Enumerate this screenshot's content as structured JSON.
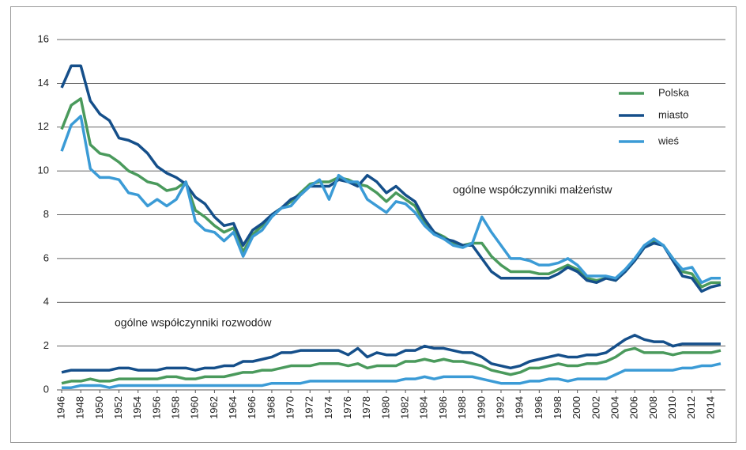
{
  "chart_data": {
    "type": "line",
    "x": [
      1946,
      1947,
      1948,
      1949,
      1950,
      1951,
      1952,
      1953,
      1954,
      1955,
      1956,
      1957,
      1958,
      1959,
      1960,
      1961,
      1962,
      1963,
      1964,
      1965,
      1966,
      1967,
      1968,
      1969,
      1970,
      1971,
      1972,
      1973,
      1974,
      1975,
      1976,
      1977,
      1978,
      1979,
      1980,
      1981,
      1982,
      1983,
      1984,
      1985,
      1986,
      1987,
      1988,
      1989,
      1990,
      1991,
      1992,
      1993,
      1994,
      1995,
      1996,
      1997,
      1998,
      1999,
      2000,
      2001,
      2002,
      2003,
      2004,
      2005,
      2006,
      2007,
      2008,
      2009,
      2010,
      2011,
      2012,
      2013,
      2014,
      2015
    ],
    "xlim": [
      1945.5,
      2015.5
    ],
    "xticks": [
      1946,
      1948,
      1950,
      1952,
      1954,
      1956,
      1958,
      1960,
      1962,
      1964,
      1966,
      1968,
      1970,
      1972,
      1974,
      1976,
      1978,
      1980,
      1982,
      1984,
      1986,
      1988,
      1990,
      1992,
      1994,
      1996,
      1998,
      2000,
      2002,
      2004,
      2006,
      2008,
      2010,
      2012,
      2014
    ],
    "ylim": [
      0,
      16
    ],
    "yticks": [
      0,
      2,
      4,
      6,
      8,
      10,
      12,
      14,
      16
    ],
    "grid": true,
    "legend": "right",
    "groups": [
      {
        "label": "ogólne współczynniki małżeństw",
        "series": [
          {
            "name": "Polska",
            "color": "#4a9a5c",
            "values": [
              11.9,
              13.0,
              13.3,
              11.2,
              10.8,
              10.7,
              10.4,
              10.0,
              9.8,
              9.5,
              9.4,
              9.1,
              9.2,
              9.5,
              8.2,
              7.9,
              7.5,
              7.2,
              7.4,
              6.3,
              7.1,
              7.5,
              8.0,
              8.3,
              8.6,
              9.0,
              9.4,
              9.5,
              9.5,
              9.7,
              9.6,
              9.4,
              9.3,
              9.0,
              8.6,
              9.0,
              8.7,
              8.4,
              7.6,
              7.2,
              7.0,
              6.7,
              6.6,
              6.7,
              6.7,
              6.1,
              5.7,
              5.4,
              5.4,
              5.4,
              5.3,
              5.3,
              5.5,
              5.7,
              5.5,
              5.1,
              5.0,
              5.1,
              5.0,
              5.4,
              5.9,
              6.5,
              6.8,
              6.6,
              6.0,
              5.4,
              5.3,
              4.7,
              4.9,
              4.9
            ]
          },
          {
            "name": "miasto",
            "color": "#154f8a",
            "values": [
              13.8,
              14.8,
              14.8,
              13.2,
              12.6,
              12.3,
              11.5,
              11.4,
              11.2,
              10.8,
              10.2,
              9.9,
              9.7,
              9.4,
              8.8,
              8.5,
              7.9,
              7.5,
              7.6,
              6.6,
              7.3,
              7.6,
              8.0,
              8.3,
              8.7,
              8.9,
              9.3,
              9.3,
              9.3,
              9.6,
              9.5,
              9.3,
              9.8,
              9.5,
              9.0,
              9.3,
              8.9,
              8.6,
              7.8,
              7.2,
              6.9,
              6.8,
              6.6,
              6.6,
              6.0,
              5.4,
              5.1,
              5.1,
              5.1,
              5.1,
              5.1,
              5.1,
              5.3,
              5.6,
              5.4,
              5.0,
              4.9,
              5.1,
              5.0,
              5.4,
              5.9,
              6.5,
              6.7,
              6.6,
              5.9,
              5.2,
              5.1,
              4.5,
              4.7,
              4.8
            ]
          },
          {
            "name": "wieś",
            "color": "#3b9bd6",
            "values": [
              10.9,
              12.1,
              12.5,
              10.1,
              9.7,
              9.7,
              9.6,
              9.0,
              8.9,
              8.4,
              8.7,
              8.4,
              8.7,
              9.5,
              7.7,
              7.3,
              7.2,
              6.8,
              7.2,
              6.1,
              7.0,
              7.3,
              7.9,
              8.3,
              8.4,
              8.9,
              9.3,
              9.6,
              8.7,
              9.8,
              9.5,
              9.5,
              8.7,
              8.4,
              8.1,
              8.6,
              8.5,
              8.1,
              7.5,
              7.1,
              6.9,
              6.6,
              6.5,
              6.7,
              7.9,
              7.2,
              6.6,
              6.0,
              6.0,
              5.9,
              5.7,
              5.7,
              5.8,
              6.0,
              5.7,
              5.2,
              5.2,
              5.2,
              5.1,
              5.5,
              6.0,
              6.6,
              6.9,
              6.6,
              6.0,
              5.5,
              5.6,
              4.9,
              5.1,
              5.1
            ]
          }
        ]
      },
      {
        "label": "ogólne współczynniki rozwodów",
        "series": [
          {
            "color": "#4a9a5c",
            "values": [
              0.3,
              0.4,
              0.4,
              0.5,
              0.4,
              0.4,
              0.5,
              0.5,
              0.5,
              0.5,
              0.5,
              0.6,
              0.6,
              0.5,
              0.5,
              0.6,
              0.6,
              0.6,
              0.7,
              0.8,
              0.8,
              0.9,
              0.9,
              1.0,
              1.1,
              1.1,
              1.1,
              1.2,
              1.2,
              1.2,
              1.1,
              1.2,
              1.0,
              1.1,
              1.1,
              1.1,
              1.3,
              1.3,
              1.4,
              1.3,
              1.4,
              1.3,
              1.3,
              1.2,
              1.1,
              0.9,
              0.8,
              0.7,
              0.8,
              1.0,
              1.0,
              1.1,
              1.2,
              1.1,
              1.1,
              1.2,
              1.2,
              1.3,
              1.5,
              1.8,
              1.9,
              1.7,
              1.7,
              1.7,
              1.6,
              1.7,
              1.7,
              1.7,
              1.7,
              1.8
            ]
          },
          {
            "color": "#154f8a",
            "values": [
              0.8,
              0.9,
              0.9,
              0.9,
              0.9,
              0.9,
              1.0,
              1.0,
              0.9,
              0.9,
              0.9,
              1.0,
              1.0,
              1.0,
              0.9,
              1.0,
              1.0,
              1.1,
              1.1,
              1.3,
              1.3,
              1.4,
              1.5,
              1.7,
              1.7,
              1.8,
              1.8,
              1.8,
              1.8,
              1.8,
              1.6,
              1.9,
              1.5,
              1.7,
              1.6,
              1.6,
              1.8,
              1.8,
              2.0,
              1.9,
              1.9,
              1.8,
              1.7,
              1.7,
              1.5,
              1.2,
              1.1,
              1.0,
              1.1,
              1.3,
              1.4,
              1.5,
              1.6,
              1.5,
              1.5,
              1.6,
              1.6,
              1.7,
              2.0,
              2.3,
              2.5,
              2.3,
              2.2,
              2.2,
              2.0,
              2.1,
              2.1,
              2.1,
              2.1,
              2.1
            ]
          },
          {
            "color": "#3b9bd6",
            "values": [
              0.1,
              0.1,
              0.2,
              0.2,
              0.2,
              0.1,
              0.2,
              0.2,
              0.2,
              0.2,
              0.2,
              0.2,
              0.2,
              0.2,
              0.2,
              0.2,
              0.2,
              0.2,
              0.2,
              0.2,
              0.2,
              0.2,
              0.3,
              0.3,
              0.3,
              0.3,
              0.4,
              0.4,
              0.4,
              0.4,
              0.4,
              0.4,
              0.4,
              0.4,
              0.4,
              0.4,
              0.5,
              0.5,
              0.6,
              0.5,
              0.6,
              0.6,
              0.6,
              0.6,
              0.5,
              0.4,
              0.3,
              0.3,
              0.3,
              0.4,
              0.4,
              0.5,
              0.5,
              0.4,
              0.5,
              0.5,
              0.5,
              0.5,
              0.7,
              0.9,
              0.9,
              0.9,
              0.9,
              0.9,
              0.9,
              1.0,
              1.0,
              1.1,
              1.1,
              1.2
            ]
          }
        ]
      }
    ]
  }
}
